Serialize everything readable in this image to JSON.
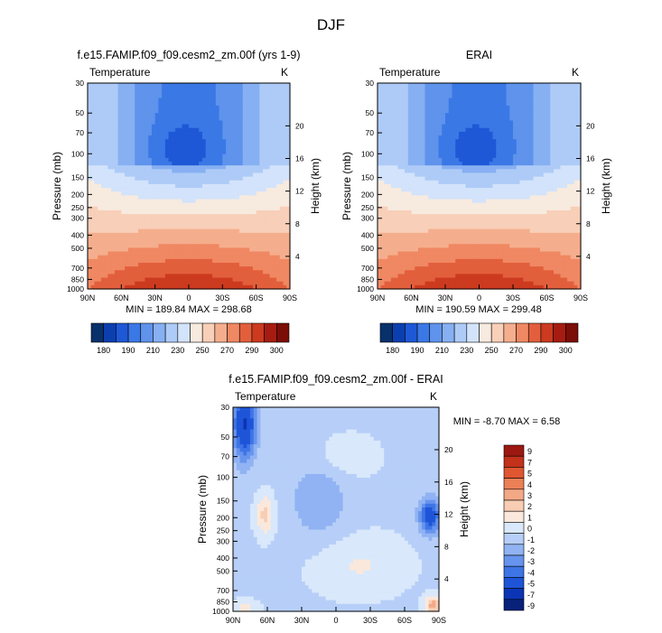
{
  "figure": {
    "title": "DJF"
  },
  "colors": {
    "abs_levels": [
      "#08306b",
      "#0b3fb0",
      "#1e58d6",
      "#3a78e6",
      "#5f93ec",
      "#87b0f2",
      "#aecbf7",
      "#d2e3fb",
      "#f7eadf",
      "#f8cfb8",
      "#f5ae8d",
      "#ef8863",
      "#e25f3c",
      "#cc3a1f",
      "#a61c11",
      "#7b0e07"
    ],
    "diff_levels": [
      "#08217a",
      "#0b35b5",
      "#1e55d8",
      "#3e75e6",
      "#6794ee",
      "#91b3f3",
      "#b7cff8",
      "#d9e8fb",
      "#fbe8dc",
      "#f8cdb4",
      "#f3a886",
      "#ec8057",
      "#df5631",
      "#c3321b",
      "#9c1911"
    ]
  },
  "chart_data": [
    {
      "type": "heatmap",
      "title": "f.e15.FAMIP.f09_f09.cesm2_zm.00f (yrs 1-9)",
      "left_label": "Temperature",
      "right_label": "K",
      "ylabel": "Pressure (mb)",
      "ylabel_right": "Height (km)",
      "x_ticks": [
        "90N",
        "60N",
        "30N",
        "0",
        "30S",
        "60S",
        "90S"
      ],
      "y_ticks": [
        "30",
        "50",
        "70",
        "100",
        "150",
        "200",
        "250",
        "300",
        "400",
        "500",
        "700",
        "850",
        "1000"
      ],
      "y2_ticks": [
        "20",
        "16",
        "12",
        "8",
        "4"
      ],
      "stats": "MIN = 189.84  MAX = 298.68",
      "colorbar_labels": [
        "180",
        "190",
        "210",
        "230",
        "250",
        "270",
        "290",
        "300"
      ]
    },
    {
      "type": "heatmap",
      "title": "ERAI",
      "left_label": "Temperature",
      "right_label": "K",
      "ylabel": "Pressure (mb)",
      "ylabel_right": "Height (km)",
      "x_ticks": [
        "90N",
        "60N",
        "30N",
        "0",
        "30S",
        "60S",
        "90S"
      ],
      "y_ticks": [
        "30",
        "50",
        "70",
        "100",
        "150",
        "200",
        "250",
        "300",
        "400",
        "500",
        "700",
        "850",
        "1000"
      ],
      "y2_ticks": [
        "20",
        "16",
        "12",
        "8",
        "4"
      ],
      "stats": "MIN = 190.59  MAX = 299.48",
      "colorbar_labels": [
        "180",
        "190",
        "210",
        "230",
        "250",
        "270",
        "290",
        "300"
      ]
    },
    {
      "type": "heatmap",
      "title": "f.e15.FAMIP.f09_f09.cesm2_zm.00f - ERAI",
      "left_label": "Temperature",
      "right_label": "K",
      "ylabel": "Pressure (mb)",
      "ylabel_right": "Height (km)",
      "x_ticks": [
        "90N",
        "60N",
        "30N",
        "0",
        "30S",
        "60S",
        "90S"
      ],
      "y_ticks": [
        "30",
        "50",
        "70",
        "100",
        "150",
        "200",
        "250",
        "300",
        "400",
        "500",
        "700",
        "850",
        "1000"
      ],
      "y2_ticks": [
        "20",
        "16",
        "12",
        "8",
        "4"
      ],
      "stats": "MIN = -8.70  MAX =   6.58",
      "colorbar_labels": [
        "9",
        "7",
        "5",
        "4",
        "3",
        "2",
        "1",
        "0",
        "-1",
        "-2",
        "-3",
        "-4",
        "-5",
        "-7",
        "-9"
      ]
    }
  ]
}
